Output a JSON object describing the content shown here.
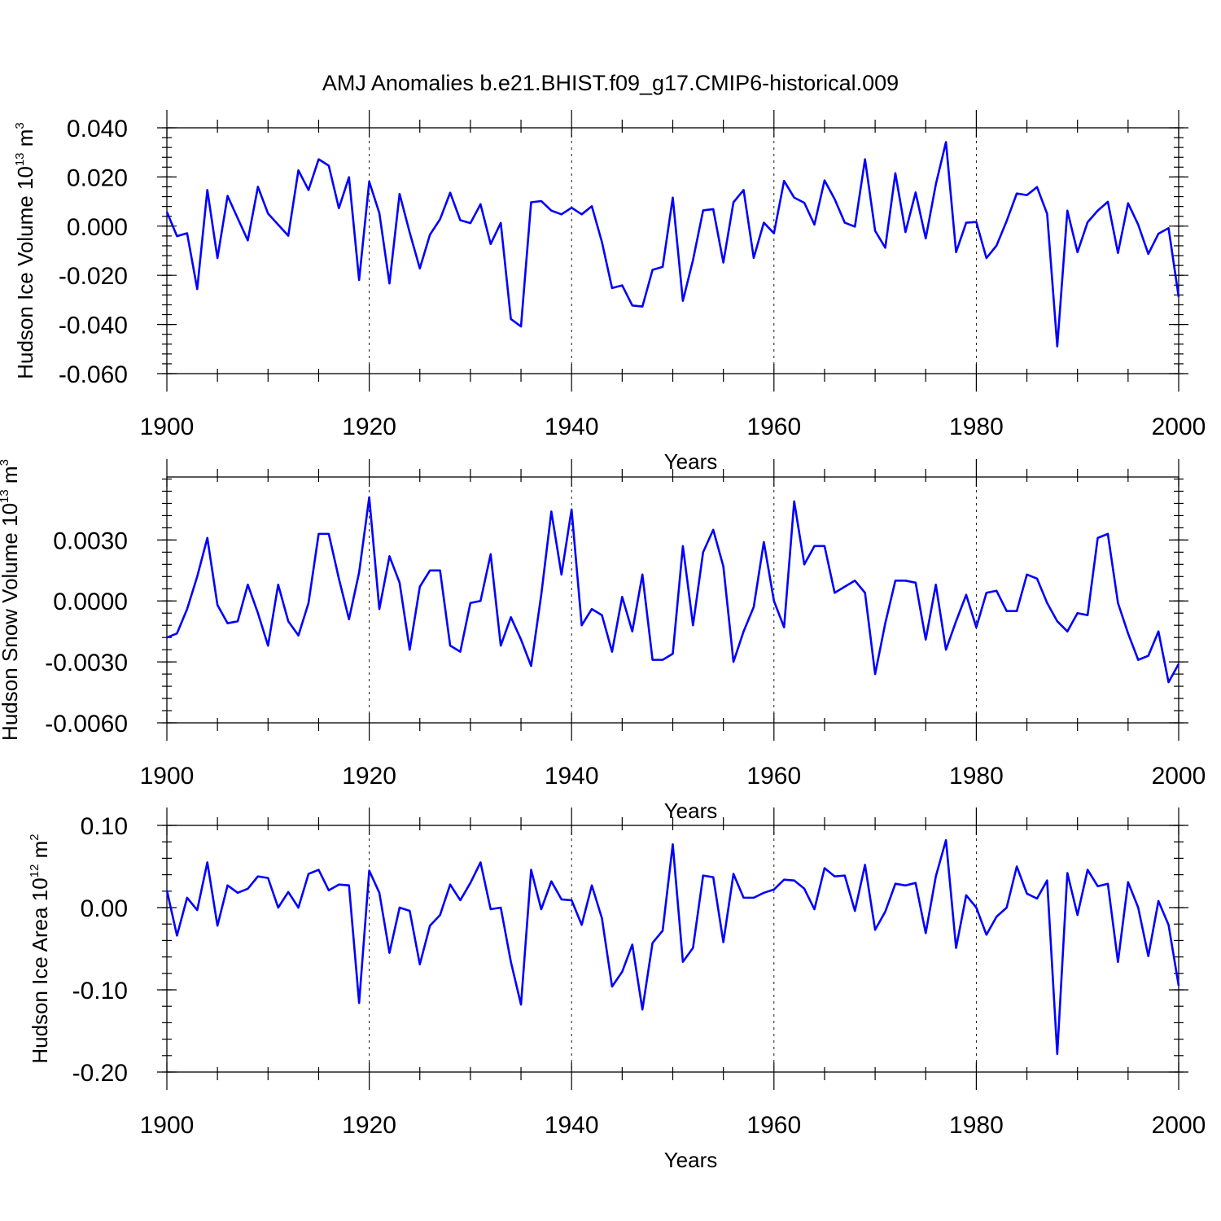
{
  "chart_data": [
    {
      "type": "line",
      "title": "AMJ Anomalies b.e21.BHIST.f09_g17.CMIP6-historical.009",
      "xlabel": "Years",
      "ylabel": "Hudson Ice Volume 10",
      "ylabel_exp": "13",
      "ylabel_unit": " m",
      "ylabel_unit_exp": "3",
      "xlim": [
        1900,
        2000
      ],
      "ylim": [
        -0.06,
        0.04
      ],
      "yticks": [
        -0.06,
        -0.04,
        -0.02,
        0.0,
        0.02,
        0.04
      ],
      "yticklabels": [
        "-0.060",
        "-0.040",
        "-0.020",
        "0.000",
        "0.020",
        "0.040"
      ],
      "xticks": [
        1900,
        1920,
        1940,
        1960,
        1980,
        2000
      ],
      "xticklabels": [
        "1900",
        "1920",
        "1940",
        "1960",
        "1980",
        "2000"
      ],
      "grid": true,
      "series": [
        {
          "name": "Hudson Ice Volume",
          "color": "#0000ff",
          "x_start": 1900,
          "values": [
            0.0058,
            -0.0041,
            -0.0029,
            -0.0256,
            0.0147,
            -0.013,
            0.0123,
            0.0032,
            -0.0058,
            0.016,
            0.0051,
            0.0006,
            -0.0039,
            0.0227,
            0.0147,
            0.0272,
            0.0246,
            0.0073,
            0.0199,
            -0.0219,
            0.0181,
            0.0053,
            -0.0233,
            0.0131,
            -0.0026,
            -0.0172,
            -0.0035,
            0.0028,
            0.0136,
            0.0024,
            0.0012,
            0.0089,
            -0.0073,
            0.0013,
            -0.0378,
            -0.0408,
            0.0097,
            0.0102,
            0.0063,
            0.0048,
            0.0075,
            0.0048,
            0.0081,
            -0.0065,
            -0.0252,
            -0.0241,
            -0.0323,
            -0.0327,
            -0.0178,
            -0.0166,
            0.0116,
            -0.0304,
            -0.0138,
            0.0064,
            0.0069,
            -0.0148,
            0.0097,
            0.0147,
            -0.0129,
            0.0014,
            -0.0029,
            0.0184,
            0.0116,
            0.0095,
            0.0006,
            0.0186,
            0.011,
            0.0014,
            -0.0002,
            0.0272,
            -0.0019,
            -0.0088,
            0.0215,
            -0.0024,
            0.0137,
            -0.005,
            0.017,
            0.0342,
            -0.0106,
            0.0014,
            0.0017,
            -0.013,
            -0.0079,
            0.0021,
            0.0133,
            0.0126,
            0.0159,
            0.005,
            -0.0489,
            0.0063,
            -0.0106,
            0.0016,
            0.0063,
            0.0099,
            -0.0109,
            0.0093,
            0.0006,
            -0.0113,
            -0.0031,
            -0.0008,
            -0.0288
          ]
        }
      ]
    },
    {
      "type": "line",
      "title": "",
      "xlabel": "Years",
      "ylabel": "Hudson Snow Volume 10",
      "ylabel_exp": "13",
      "ylabel_unit": " m",
      "ylabel_unit_exp": "3",
      "xlim": [
        1900,
        2000
      ],
      "ylim": [
        -0.006,
        0.0061
      ],
      "yticks": [
        -0.006,
        -0.003,
        0.0,
        0.003
      ],
      "yticklabels": [
        "-0.0060",
        "-0.0030",
        "0.0000",
        "0.0030"
      ],
      "xticks": [
        1900,
        1920,
        1940,
        1960,
        1980,
        2000
      ],
      "xticklabels": [
        "1900",
        "1920",
        "1940",
        "1960",
        "1980",
        "2000"
      ],
      "grid": true,
      "series": [
        {
          "name": "Hudson Snow Volume",
          "color": "#0000ff",
          "x_start": 1900,
          "values": [
            -0.0018,
            -0.0016,
            -0.0004,
            0.0012,
            0.0031,
            -0.0002,
            -0.0011,
            -0.001,
            0.0008,
            -0.0006,
            -0.0022,
            0.0008,
            -0.001,
            -0.0017,
            -0.0001,
            0.0033,
            0.0033,
            0.0011,
            -0.0009,
            0.0014,
            0.0051,
            -0.0004,
            0.0022,
            0.0009,
            -0.0024,
            0.0007,
            0.0015,
            0.0015,
            -0.0022,
            -0.0025,
            -0.0001,
            0.0,
            0.0023,
            -0.0022,
            -0.0008,
            -0.0019,
            -0.0032,
            0.0003,
            0.0044,
            0.0013,
            0.0045,
            -0.0012,
            -0.0004,
            -0.0007,
            -0.0025,
            0.0002,
            -0.0015,
            0.0013,
            -0.0029,
            -0.0029,
            -0.0026,
            0.0027,
            -0.0012,
            0.0024,
            0.0035,
            0.0017,
            -0.003,
            -0.0015,
            -0.0003,
            0.0029,
            0.0,
            -0.0013,
            0.0049,
            0.0018,
            0.0027,
            0.0027,
            0.0004,
            0.0007,
            0.001,
            0.0004,
            -0.0036,
            -0.0011,
            0.001,
            0.001,
            0.0009,
            -0.0019,
            0.0008,
            -0.0024,
            -0.001,
            0.0003,
            -0.0013,
            0.0004,
            0.0005,
            -0.0005,
            -0.0005,
            0.0013,
            0.0011,
            -0.0001,
            -0.001,
            -0.0015,
            -0.0006,
            -0.0007,
            0.0031,
            0.0033,
            -0.0001,
            -0.0016,
            -0.0029,
            -0.0027,
            -0.0015,
            -0.004,
            -0.0031
          ]
        }
      ]
    },
    {
      "type": "line",
      "title": "",
      "xlabel": "Years",
      "ylabel": "Hudson Ice Area 10",
      "ylabel_exp": "12",
      "ylabel_unit": " m",
      "ylabel_unit_exp": "2",
      "xlim": [
        1900,
        2000
      ],
      "ylim": [
        -0.2,
        0.1
      ],
      "yticks": [
        -0.2,
        -0.1,
        0.0,
        0.1
      ],
      "yticklabels": [
        "-0.20",
        "-0.10",
        "0.00",
        "0.10"
      ],
      "xticks": [
        1900,
        1920,
        1940,
        1960,
        1980,
        2000
      ],
      "xticklabels": [
        "1900",
        "1920",
        "1940",
        "1960",
        "1980",
        "2000"
      ],
      "grid": true,
      "series": [
        {
          "name": "Hudson Ice Area",
          "color": "#0000ff",
          "x_start": 1900,
          "values": [
            0.021,
            -0.034,
            0.012,
            -0.003,
            0.055,
            -0.022,
            0.027,
            0.018,
            0.023,
            0.038,
            0.036,
            0.0,
            0.019,
            0.0,
            0.041,
            0.046,
            0.021,
            0.028,
            0.027,
            -0.116,
            0.045,
            0.018,
            -0.055,
            0.0,
            -0.004,
            -0.069,
            -0.022,
            -0.009,
            0.028,
            0.009,
            0.03,
            0.055,
            -0.002,
            0.0,
            -0.066,
            -0.118,
            0.046,
            -0.002,
            0.032,
            0.01,
            0.009,
            -0.021,
            0.027,
            -0.013,
            -0.096,
            -0.078,
            -0.045,
            -0.124,
            -0.043,
            -0.028,
            0.077,
            -0.066,
            -0.049,
            0.039,
            0.037,
            -0.042,
            0.041,
            0.012,
            0.012,
            0.018,
            0.022,
            0.034,
            0.033,
            0.023,
            -0.002,
            0.048,
            0.038,
            0.039,
            -0.004,
            0.052,
            -0.027,
            -0.005,
            0.029,
            0.027,
            0.03,
            -0.031,
            0.038,
            0.082,
            -0.049,
            0.015,
            0.0,
            -0.033,
            -0.011,
            0.0,
            0.05,
            0.017,
            0.011,
            0.033,
            -0.178,
            0.042,
            -0.009,
            0.046,
            0.026,
            0.029,
            -0.066,
            0.031,
            0.0,
            -0.059,
            0.008,
            -0.021,
            -0.095
          ]
        }
      ]
    }
  ]
}
